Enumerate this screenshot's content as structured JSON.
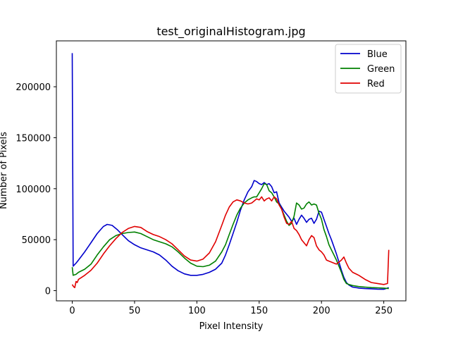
{
  "chart_data": {
    "type": "line",
    "title": "test_originalHistogram.jpg",
    "xlabel": "Pixel Intensity",
    "ylabel": "Number of Pixels",
    "xlim": [
      -12.75,
      267.75
    ],
    "ylim": [
      -10000,
      245000
    ],
    "xticks": [
      0,
      50,
      100,
      150,
      200,
      250
    ],
    "yticks": [
      0,
      50000,
      100000,
      150000,
      200000
    ],
    "xtick_labels": [
      "0",
      "50",
      "100",
      "150",
      "200",
      "250"
    ],
    "ytick_labels": [
      "0",
      "50000",
      "100000",
      "150000",
      "200000"
    ],
    "grid": false,
    "legend_position": "top-right",
    "series": [
      {
        "name": "Blue",
        "color": "#0000cc",
        "points": [
          [
            0,
            233000
          ],
          [
            0.7,
            24000
          ],
          [
            3,
            27000
          ],
          [
            5,
            30000
          ],
          [
            10,
            38000
          ],
          [
            15,
            47000
          ],
          [
            20,
            56000
          ],
          [
            25,
            63000
          ],
          [
            28,
            65000
          ],
          [
            32,
            64000
          ],
          [
            36,
            60000
          ],
          [
            40,
            55000
          ],
          [
            45,
            49000
          ],
          [
            50,
            45000
          ],
          [
            55,
            42000
          ],
          [
            60,
            40000
          ],
          [
            65,
            38000
          ],
          [
            70,
            35000
          ],
          [
            75,
            30000
          ],
          [
            80,
            24000
          ],
          [
            85,
            19500
          ],
          [
            90,
            16500
          ],
          [
            95,
            15000
          ],
          [
            100,
            15000
          ],
          [
            105,
            16000
          ],
          [
            110,
            18000
          ],
          [
            115,
            21000
          ],
          [
            120,
            27000
          ],
          [
            123,
            35000
          ],
          [
            126,
            45000
          ],
          [
            129,
            56000
          ],
          [
            132,
            67000
          ],
          [
            135,
            79000
          ],
          [
            138,
            89000
          ],
          [
            141,
            97000
          ],
          [
            144,
            102000
          ],
          [
            146,
            108000
          ],
          [
            148,
            107000
          ],
          [
            150,
            105000
          ],
          [
            152,
            104000
          ],
          [
            154,
            106000
          ],
          [
            156,
            104000
          ],
          [
            158,
            105000
          ],
          [
            160,
            102000
          ],
          [
            162,
            96000
          ],
          [
            164,
            97000
          ],
          [
            166,
            86000
          ],
          [
            168,
            82000
          ],
          [
            170,
            78000
          ],
          [
            172,
            75000
          ],
          [
            174,
            72000
          ],
          [
            176,
            68000
          ],
          [
            178,
            71000
          ],
          [
            180,
            65000
          ],
          [
            182,
            70000
          ],
          [
            184,
            74000
          ],
          [
            186,
            71000
          ],
          [
            188,
            67000
          ],
          [
            190,
            70000
          ],
          [
            192,
            71000
          ],
          [
            194,
            66000
          ],
          [
            196,
            70000
          ],
          [
            198,
            78000
          ],
          [
            200,
            77000
          ],
          [
            202,
            70000
          ],
          [
            204,
            63000
          ],
          [
            206,
            56000
          ],
          [
            208,
            50000
          ],
          [
            210,
            43000
          ],
          [
            212,
            36000
          ],
          [
            214,
            28000
          ],
          [
            216,
            20000
          ],
          [
            218,
            13000
          ],
          [
            220,
            8000
          ],
          [
            222,
            5500
          ],
          [
            225,
            3500
          ],
          [
            230,
            2500
          ],
          [
            235,
            2000
          ],
          [
            240,
            1800
          ],
          [
            245,
            1500
          ],
          [
            250,
            1300
          ],
          [
            254,
            3000
          ]
        ]
      },
      {
        "name": "Green",
        "color": "#008000",
        "points": [
          [
            0,
            23000
          ],
          [
            0.7,
            15000
          ],
          [
            3,
            16000
          ],
          [
            5,
            18000
          ],
          [
            10,
            21000
          ],
          [
            15,
            26000
          ],
          [
            20,
            35000
          ],
          [
            25,
            43000
          ],
          [
            30,
            50000
          ],
          [
            35,
            54000
          ],
          [
            40,
            56000
          ],
          [
            45,
            57000
          ],
          [
            50,
            57500
          ],
          [
            55,
            56000
          ],
          [
            60,
            53000
          ],
          [
            65,
            50000
          ],
          [
            70,
            48000
          ],
          [
            75,
            46000
          ],
          [
            80,
            43000
          ],
          [
            85,
            38000
          ],
          [
            90,
            32000
          ],
          [
            95,
            27000
          ],
          [
            100,
            24000
          ],
          [
            105,
            23500
          ],
          [
            110,
            25000
          ],
          [
            115,
            29000
          ],
          [
            120,
            38000
          ],
          [
            123,
            45000
          ],
          [
            126,
            55000
          ],
          [
            129,
            65000
          ],
          [
            132,
            74000
          ],
          [
            135,
            81000
          ],
          [
            138,
            86000
          ],
          [
            141,
            89000
          ],
          [
            144,
            91000
          ],
          [
            146,
            92000
          ],
          [
            148,
            92000
          ],
          [
            150,
            96000
          ],
          [
            152,
            100000
          ],
          [
            154,
            105000
          ],
          [
            156,
            104000
          ],
          [
            158,
            98000
          ],
          [
            160,
            96000
          ],
          [
            162,
            92000
          ],
          [
            164,
            87000
          ],
          [
            166,
            85000
          ],
          [
            168,
            80000
          ],
          [
            170,
            74000
          ],
          [
            172,
            68000
          ],
          [
            174,
            64000
          ],
          [
            176,
            66000
          ],
          [
            178,
            73000
          ],
          [
            180,
            86000
          ],
          [
            182,
            84000
          ],
          [
            184,
            80000
          ],
          [
            186,
            81000
          ],
          [
            188,
            85000
          ],
          [
            190,
            87000
          ],
          [
            192,
            84000
          ],
          [
            194,
            85000
          ],
          [
            196,
            84000
          ],
          [
            198,
            76000
          ],
          [
            200,
            70000
          ],
          [
            202,
            60000
          ],
          [
            204,
            53000
          ],
          [
            206,
            45000
          ],
          [
            208,
            40000
          ],
          [
            210,
            35000
          ],
          [
            212,
            30000
          ],
          [
            214,
            24000
          ],
          [
            216,
            18000
          ],
          [
            218,
            11000
          ],
          [
            220,
            7000
          ],
          [
            222,
            6000
          ],
          [
            225,
            5000
          ],
          [
            230,
            4000
          ],
          [
            235,
            3500
          ],
          [
            240,
            3000
          ],
          [
            245,
            2800
          ],
          [
            250,
            2500
          ],
          [
            254,
            2000
          ]
        ]
      },
      {
        "name": "Red",
        "color": "#e00000",
        "points": [
          [
            0,
            6000
          ],
          [
            1,
            4000
          ],
          [
            2,
            3000
          ],
          [
            3,
            9000
          ],
          [
            4,
            8000
          ],
          [
            5,
            11000
          ],
          [
            10,
            15000
          ],
          [
            15,
            20000
          ],
          [
            20,
            27000
          ],
          [
            25,
            36000
          ],
          [
            30,
            44000
          ],
          [
            35,
            51000
          ],
          [
            40,
            57000
          ],
          [
            45,
            61000
          ],
          [
            50,
            63000
          ],
          [
            55,
            62000
          ],
          [
            60,
            58000
          ],
          [
            65,
            55000
          ],
          [
            70,
            53000
          ],
          [
            75,
            50000
          ],
          [
            80,
            46000
          ],
          [
            85,
            40000
          ],
          [
            90,
            34000
          ],
          [
            95,
            30000
          ],
          [
            100,
            29000
          ],
          [
            105,
            31000
          ],
          [
            110,
            37000
          ],
          [
            115,
            48000
          ],
          [
            120,
            64000
          ],
          [
            123,
            74000
          ],
          [
            126,
            82000
          ],
          [
            129,
            87000
          ],
          [
            132,
            89000
          ],
          [
            135,
            88000
          ],
          [
            138,
            86000
          ],
          [
            141,
            85000
          ],
          [
            144,
            86000
          ],
          [
            146,
            88000
          ],
          [
            148,
            90000
          ],
          [
            150,
            89000
          ],
          [
            152,
            92000
          ],
          [
            154,
            88000
          ],
          [
            156,
            90000
          ],
          [
            158,
            91000
          ],
          [
            160,
            88000
          ],
          [
            162,
            92000
          ],
          [
            164,
            90000
          ],
          [
            166,
            84000
          ],
          [
            168,
            80000
          ],
          [
            170,
            72000
          ],
          [
            172,
            66000
          ],
          [
            174,
            65000
          ],
          [
            176,
            68000
          ],
          [
            178,
            61000
          ],
          [
            180,
            59000
          ],
          [
            182,
            55000
          ],
          [
            184,
            50000
          ],
          [
            186,
            47000
          ],
          [
            188,
            44000
          ],
          [
            190,
            50000
          ],
          [
            192,
            54000
          ],
          [
            194,
            52000
          ],
          [
            196,
            44000
          ],
          [
            198,
            40000
          ],
          [
            200,
            38000
          ],
          [
            202,
            35000
          ],
          [
            204,
            30000
          ],
          [
            206,
            29000
          ],
          [
            208,
            28000
          ],
          [
            210,
            27000
          ],
          [
            212,
            26000
          ],
          [
            214,
            28000
          ],
          [
            216,
            30000
          ],
          [
            218,
            33000
          ],
          [
            220,
            27000
          ],
          [
            222,
            22000
          ],
          [
            225,
            18000
          ],
          [
            230,
            15000
          ],
          [
            235,
            11000
          ],
          [
            240,
            8000
          ],
          [
            245,
            7000
          ],
          [
            250,
            6000
          ],
          [
            253,
            7000
          ],
          [
            254,
            40000
          ]
        ]
      }
    ]
  }
}
